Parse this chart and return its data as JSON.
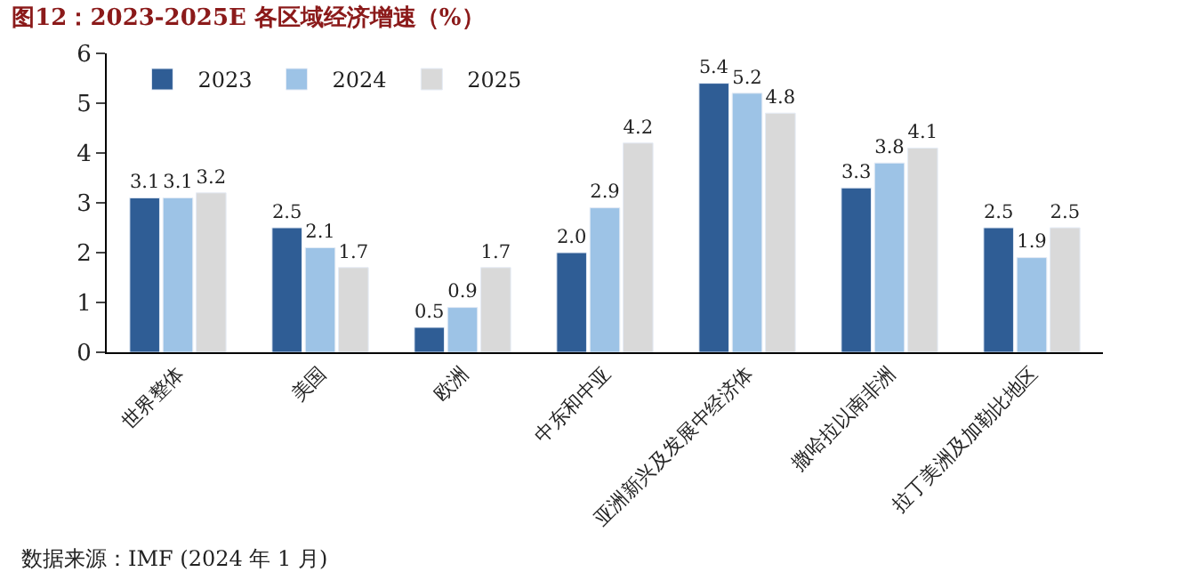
{
  "chart_data": {
    "type": "bar",
    "title": "图12：2023-2025E 各区域经济增速（%）",
    "categories": [
      "世界整体",
      "美国",
      "欧洲",
      "中东和中亚",
      "亚洲新兴及发展中经济体",
      "撒哈拉以南非洲",
      "拉丁美洲及加勒比地区"
    ],
    "series": [
      {
        "name": "2023",
        "color": "#2f5d95",
        "values": [
          3.1,
          2.5,
          0.5,
          2.0,
          5.4,
          3.3,
          2.5
        ],
        "value_labels": [
          "3.1",
          "2.5",
          "0.5",
          "2.0",
          "5.4",
          "3.3",
          "2.5"
        ]
      },
      {
        "name": "2024",
        "color": "#9dc3e6",
        "values": [
          3.1,
          2.1,
          0.9,
          2.9,
          5.2,
          3.8,
          1.9
        ],
        "value_labels": [
          "3.1",
          "2.1",
          "0.9",
          "2.9",
          "5.2",
          "3.8",
          "1.9"
        ]
      },
      {
        "name": "2025",
        "color": "#d9d9d9",
        "values": [
          3.2,
          1.7,
          1.7,
          4.2,
          4.8,
          4.1,
          2.5
        ],
        "value_labels": [
          "3.2",
          "1.7",
          "1.7",
          "4.2",
          "4.8",
          "4.1",
          "2.5"
        ]
      }
    ],
    "ylim": [
      0,
      6
    ],
    "yticks": [
      0,
      1,
      2,
      3,
      4,
      5,
      6
    ],
    "legend": "top left",
    "annotations": [
      "数据来源：IMF (2024 年 1 月)"
    ]
  }
}
